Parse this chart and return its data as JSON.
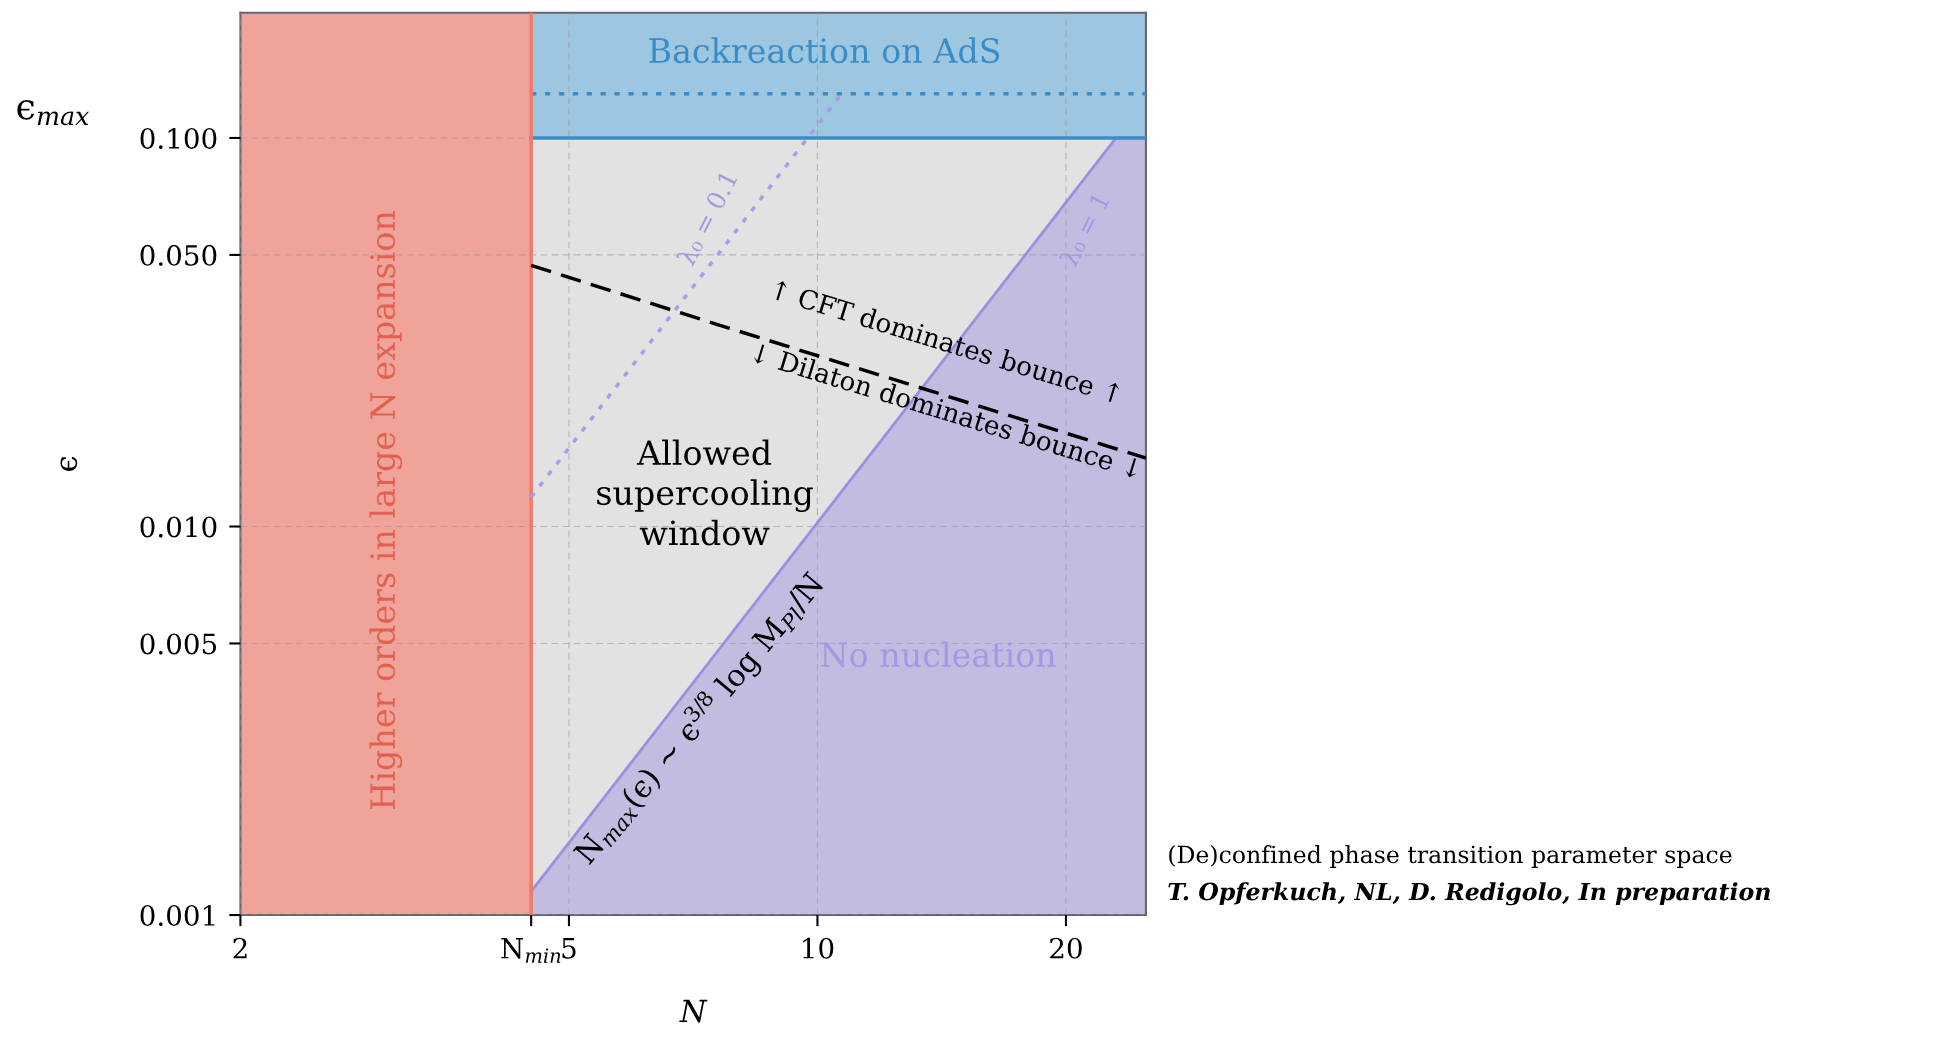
{
  "chart_data": {
    "type": "line",
    "xlabel": "N",
    "ylabel": "ϵ",
    "log": "xy",
    "xlim": [
      2,
      25
    ],
    "ylim": [
      0.001,
      0.21
    ],
    "xticks": [
      2,
      {
        "value": 4.5,
        "label": "N$_{min}$"
      },
      5,
      10,
      20
    ],
    "yticks": [
      0.001,
      0.005,
      {
        "value": 0.01,
        "label": "0.010"
      },
      {
        "value": 0.05,
        "label": "0.050"
      },
      {
        "value": 0.1,
        "label": "0.100"
      }
    ],
    "grid": true,
    "series": [
      {
        "color": "#a89de6",
        "line_style": "dotted",
        "x": [
          4.5,
          10.7
        ],
        "values": [
          0.0119,
          0.13
        ]
      },
      {
        "color": "#000000",
        "line_style": "dashed",
        "x": [
          4.5,
          7.6,
          25
        ],
        "values": [
          0.047,
          0.033,
          0.015
        ]
      },
      {
        "type": "area",
        "color": "#9b8fe0",
        "x": [
          4.5,
          23,
          25
        ],
        "values": [
          0.00115,
          0.1,
          0.1
        ]
      }
    ],
    "bands": [
      {
        "axis": "x",
        "from": 4.5,
        "to": 25,
        "color": "#e2e2e2"
      },
      {
        "axis": "y",
        "from": 0.1,
        "to": 0.21,
        "color": "#9dc6e0"
      },
      {
        "axis": "x",
        "from": 2,
        "to": 4.5,
        "color": "#f0a398"
      }
    ],
    "ref_lines": [
      {
        "axis": "y",
        "value": 0.13,
        "color": "#3a8cc8",
        "line_style": "dotted"
      },
      {
        "axis": "y",
        "value": 0.1,
        "color": "#3a8cc8",
        "line_style": "solid"
      },
      {
        "axis": "x",
        "value": 4.5,
        "color": "#f07a6a",
        "line_style": "solid"
      }
    ],
    "annotations": [
      "Backreaction on AdS",
      "Higher orders in large N expansion",
      "Allowed\nsupercooling\nwindow",
      "No nucleation",
      "λ₀ = 0.1",
      "λ₀ = 1",
      "↑ CFT dominates bounce ↑",
      "↓ Dilaton dominates bounce ↓",
      "N$_{max}$(ϵ) ∼ ϵ$^{3/8}$ log M$_{Pl}$/N",
      "(De)confined phase transition parameter space",
      "T. Opferkuch, NL, D. Redigolo, In preparation",
      "ϵ$_{max}$"
    ]
  }
}
